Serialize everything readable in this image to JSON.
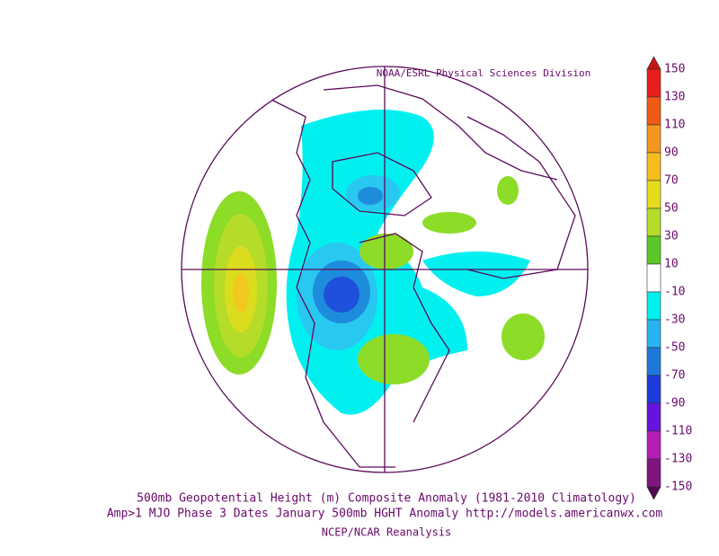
{
  "header": {
    "credit": "NOAA/ESRL Physical Sciences Division"
  },
  "colorbar": {
    "labels": [
      "150",
      "130",
      "110",
      "90",
      "70",
      "50",
      "30",
      "10",
      "-10",
      "-30",
      "-50",
      "-70",
      "-90",
      "-110",
      "-130",
      "-150"
    ]
  },
  "caption": {
    "line1": "500mb Geopotential Height (m) Composite Anomaly (1981-2010 Climatology)",
    "line2": "Amp>1 MJO Phase 3 Dates January 500mb HGHT Anomaly http://models.americanwx.com",
    "line3": "NCEP/NCAR Reanalysis"
  }
}
